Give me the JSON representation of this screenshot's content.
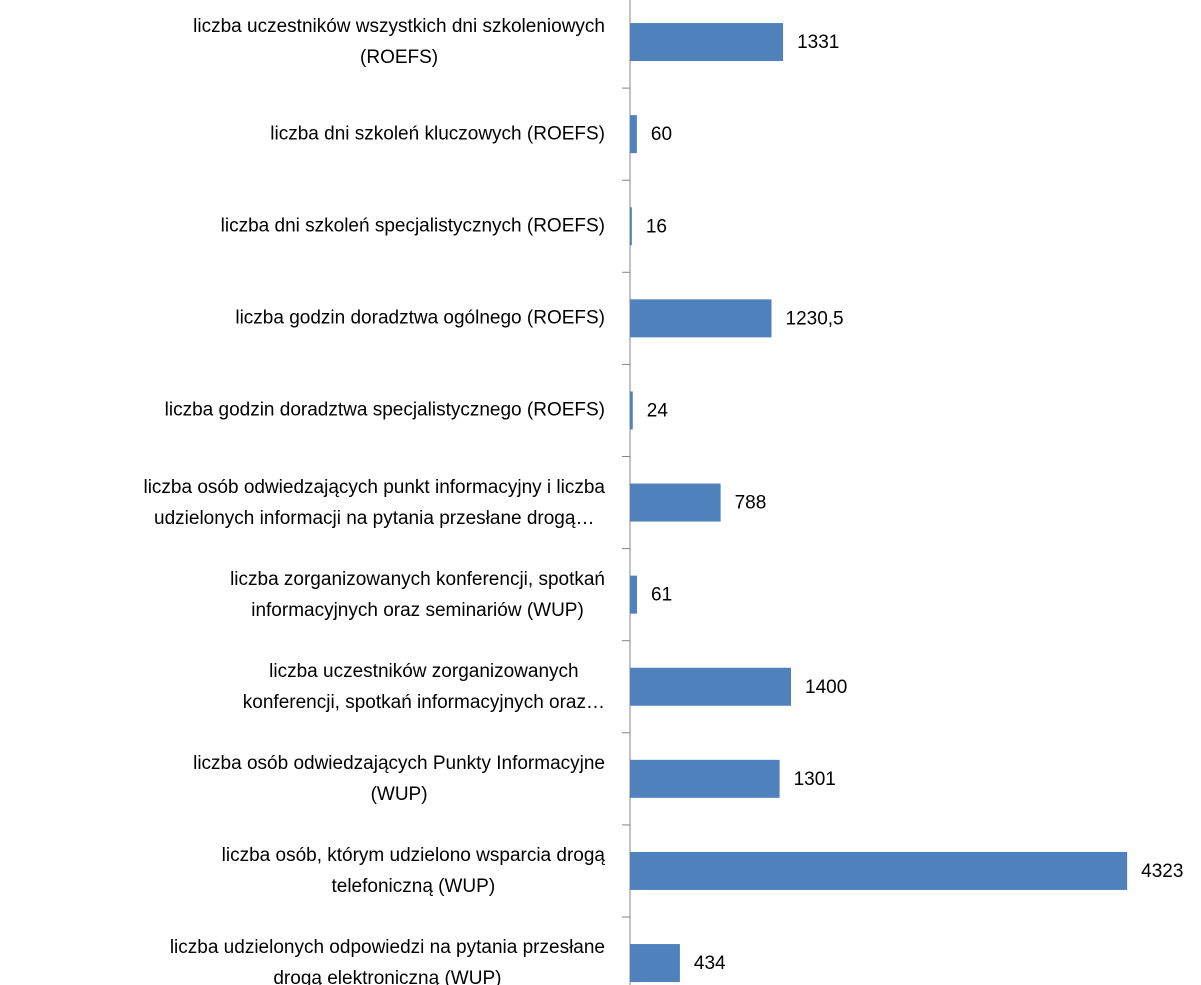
{
  "chart_data": {
    "type": "barh",
    "categories": [
      "liczba uczestników wszystkich dni szkoleniowych\n(ROEFS)",
      "liczba dni szkoleń kluczowych (ROEFS)",
      "liczba dni szkoleń specjalistycznych (ROEFS)",
      "liczba godzin doradztwa ogólnego (ROEFS)",
      "liczba godzin doradztwa specjalistycznego (ROEFS)",
      "liczba osób odwiedzających punkt informacyjny i liczba\nudzielonych informacji na pytania przesłane drogą…",
      "liczba zorganizowanych konferencji, spotkań\ninformacyjnych oraz seminariów (WUP)",
      "liczba uczestników zorganizowanych\nkonferencji, spotkań informacyjnych oraz…",
      "liczba osób odwiedzających Punkty Informacyjne\n(WUP)",
      "liczba osób, którym udzielono wsparcia drogą\ntelefoniczną (WUP)",
      "liczba udzielonych odpowiedzi na pytania przesłane\ndrogą elektroniczną (WUP)"
    ],
    "values": [
      1331,
      60,
      16,
      1230.5,
      24,
      788,
      61,
      1400,
      1301,
      4323,
      434
    ],
    "value_labels": [
      "1331",
      "60",
      "16",
      "1230,5",
      "24",
      "788",
      "61",
      "1400",
      "1301",
      "4323",
      "434"
    ],
    "color": "#4f81bd",
    "xlim": [
      0,
      5000
    ]
  }
}
